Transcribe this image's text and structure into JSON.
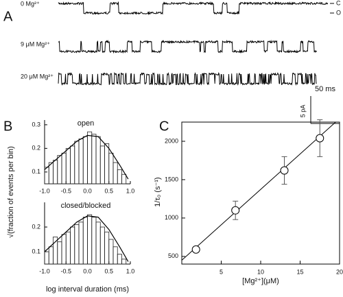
{
  "chart_data": [
    {
      "type": "trace",
      "panel_label": "A",
      "traces": [
        "0 Mg²⁺",
        "9 μM Mg²⁺",
        "20 μM Mg²⁺"
      ],
      "state_labels": [
        "C",
        "O"
      ],
      "scale_labels": [
        "50 ms",
        "5 pA"
      ]
    },
    {
      "type": "histogram",
      "panel_label": "B",
      "title": "open",
      "ylabel": "√(fraction of events per bin)",
      "bins": [
        -1.0,
        -0.9,
        -0.8,
        -0.7,
        -0.6,
        -0.5,
        -0.4,
        -0.3,
        -0.2,
        -0.1,
        0.0,
        0.1,
        0.2,
        0.3,
        0.4,
        0.5,
        0.6,
        0.7,
        0.8,
        0.9
      ],
      "values": [
        0.12,
        0.14,
        0.15,
        0.17,
        0.18,
        0.2,
        0.21,
        0.23,
        0.24,
        0.25,
        0.27,
        0.26,
        0.25,
        0.21,
        0.22,
        0.18,
        0.14,
        0.11,
        0.09
      ],
      "fit": {
        "x": [
          -1.0,
          -0.75,
          -0.5,
          -0.25,
          0.0,
          0.25,
          0.5,
          0.75,
          0.95
        ],
        "y": [
          0.11,
          0.15,
          0.19,
          0.23,
          0.255,
          0.25,
          0.2,
          0.13,
          0.07
        ]
      },
      "xlim": [
        -1.0,
        1.0
      ],
      "ylim": [
        0.05,
        0.32
      ],
      "xticks": [
        {
          "value": -1,
          "label": "-1.0"
        },
        -0.5,
        {
          "value": 0,
          "label": "0.0"
        },
        0.5,
        {
          "value": 1,
          "label": "1.0"
        }
      ],
      "yticks": [
        0.1,
        0.2,
        0.3
      ]
    },
    {
      "type": "histogram",
      "title": "closed/blocked",
      "xlabel": "log interval duration (ms)",
      "bins": [
        -1.0,
        -0.9,
        -0.8,
        -0.7,
        -0.6,
        -0.5,
        -0.4,
        -0.3,
        -0.2,
        -0.1,
        0.0,
        0.1,
        0.2,
        0.3,
        0.4,
        0.5,
        0.6,
        0.7,
        0.8,
        0.9
      ],
      "values": [
        0.1,
        0.12,
        0.16,
        0.14,
        0.17,
        0.18,
        0.2,
        0.21,
        0.22,
        0.24,
        0.25,
        0.24,
        0.22,
        0.2,
        0.18,
        0.15,
        0.12,
        0.09,
        0.07
      ],
      "fit": {
        "x": [
          -1.0,
          -0.75,
          -0.5,
          -0.25,
          0.0,
          0.25,
          0.5,
          0.75,
          0.95
        ],
        "y": [
          0.1,
          0.14,
          0.18,
          0.22,
          0.245,
          0.24,
          0.19,
          0.12,
          0.06
        ]
      },
      "xlim": [
        -1.0,
        1.0
      ],
      "ylim": [
        0.05,
        0.3
      ],
      "xticks": [
        {
          "value": -1,
          "label": "-1.0"
        },
        -0.5,
        {
          "value": 0,
          "label": "0.0"
        },
        0.5,
        {
          "value": 1,
          "label": "1.0"
        }
      ],
      "yticks": [
        0.1,
        0.2
      ]
    },
    {
      "type": "scatter",
      "panel_label": "C",
      "xlabel": "[Mg²⁺](μM)",
      "ylabel": "1/τ₀ (s⁻¹)",
      "x": [
        1.8,
        6.8,
        13,
        17.5
      ],
      "values": [
        590,
        1100,
        1620,
        2040
      ],
      "errors": [
        30,
        120,
        180,
        240
      ],
      "fit": {
        "x": [
          0,
          19.5
        ],
        "y": [
          450,
          2250
        ]
      },
      "xlim": [
        0,
        20
      ],
      "ylim": [
        400,
        2250
      ],
      "xticks": [
        5,
        10,
        15,
        20
      ],
      "yticks": [
        500,
        1000,
        1500,
        2000
      ]
    }
  ]
}
